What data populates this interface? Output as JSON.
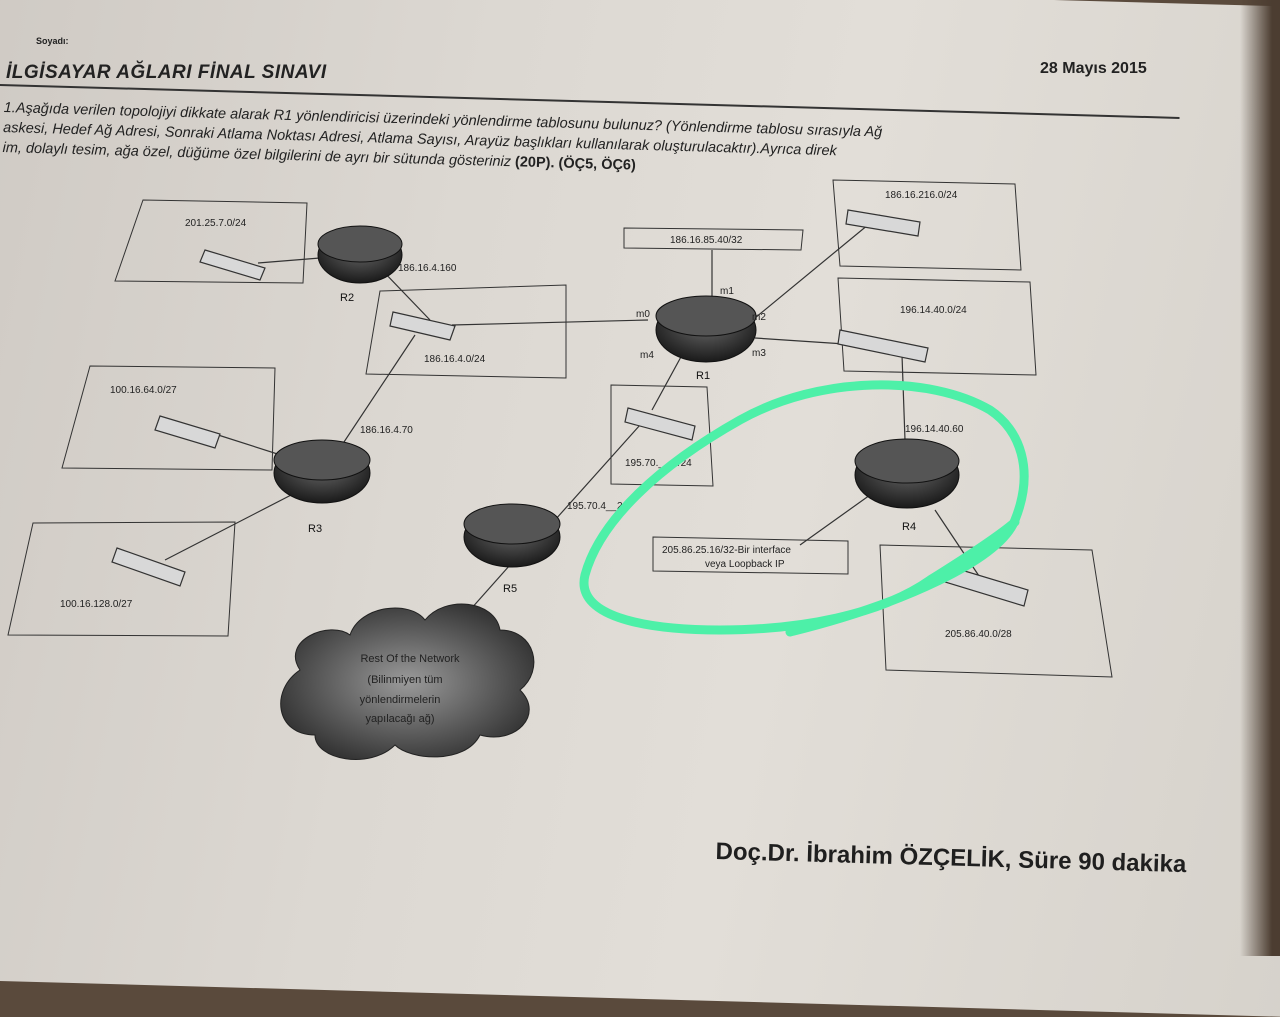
{
  "header": {
    "surname_label": "Soyadı:",
    "title": "İLGİSAYAR AĞLARI FİNAL SINAVI",
    "date": "28 Mayıs 2015"
  },
  "question": {
    "line1": "1.Aşağıda verilen topolojiyi dikkate alarak R1 yönlendiricisi üzerindeki yönlendirme tablosunu bulunuz? (Yönlendirme tablosu sırasıyla Ağ",
    "line2": "askesi, Hedef Ağ Adresi, Sonraki Atlama Noktası Adresi, Atlama Sayısı, Arayüz başlıkları kullanılarak oluşturulacaktır).Ayrıca direk",
    "line3_text": "im, dolaylı tesim, ağa özel, düğüme özel bilgilerini de ayrı bir sütunda gösteriniz",
    "line3_bold": "(20P). (ÖÇ5, ÖÇ6)"
  },
  "diagram": {
    "routers": [
      "R1",
      "R2",
      "R3",
      "R4",
      "R5"
    ],
    "networks": {
      "n201": "201.25.7.0/24",
      "n186_4": "186.16.4.0/24",
      "n100_64": "100.16.64.0/27",
      "n100_128": "100.16.128.0/27",
      "n186_85": "186.16.85.40/32",
      "n186_216": "186.16.216.0/24",
      "n196": "196.14.40.0/24",
      "n195": "195.70.__.0/24",
      "n205": "205.86.40.0/28",
      "loop1": "205.86.25.16/32-Bir interface",
      "loop2": "veya Loopback IP"
    },
    "addresses": {
      "r2": "186.16.4.160",
      "r3": "186.16.4.70",
      "r4": "196.14.40.60",
      "r5": "195.70.4__2"
    },
    "interfaces": [
      "m0",
      "m1",
      "m2",
      "m3",
      "m4"
    ],
    "cloud": [
      "Rest Of the Network",
      "(Bilinmiyen tüm",
      "yönlendirmelerin",
      "yapılacağı ağ)"
    ]
  },
  "footer": {
    "author": "Doç.Dr. İbrahim ÖZÇELİK, Süre 90 dakika"
  },
  "colors": {
    "highlight": "#4df0a8",
    "ink": "#222222"
  }
}
